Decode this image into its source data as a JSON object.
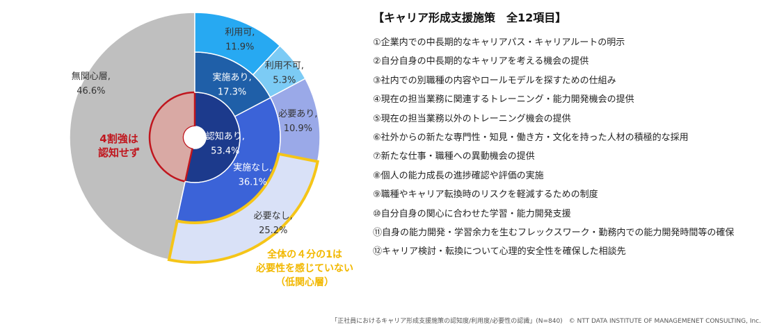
{
  "chart_data": {
    "type": "sunburst",
    "rings": [
      {
        "level": "awareness",
        "segments": [
          {
            "name": "無関心層",
            "pct": "46.6%",
            "value": 46.6,
            "color": "#d9a9a4"
          },
          {
            "name": "認知あり,",
            "pct": "53.4%",
            "value": 53.4,
            "color": "#1c3a8c"
          }
        ]
      },
      {
        "level": "implementation",
        "segments": [
          {
            "name": "実施あり,",
            "pct": "17.3%",
            "value": 17.3,
            "color": "#1f5fa8",
            "parent": "認知あり,"
          },
          {
            "name": "実施なし,",
            "pct": "36.1%",
            "value": 36.1,
            "color": "#3b63d8",
            "parent": "認知あり,"
          }
        ]
      },
      {
        "level": "usage_need",
        "segments": [
          {
            "name": "利用可,",
            "pct": "11.9%",
            "value": 11.9,
            "color": "#27a9f2",
            "parent": "実施あり,"
          },
          {
            "name": "利用不可,",
            "pct": "5.3%",
            "value": 5.3,
            "color": "#7ccbf5",
            "parent": "実施あり,"
          },
          {
            "name": "必要あり,",
            "pct": "10.9%",
            "value": 10.9,
            "color": "#9aa9e8",
            "parent": "実施なし,"
          },
          {
            "name": "必要なし,",
            "pct": "25.2%",
            "value": 25.2,
            "color": "#d9e1f7",
            "parent": "実施なし,"
          }
        ]
      }
    ],
    "outer_gray": {
      "name": "無関心層,",
      "pct": "46.6%",
      "value": 46.6,
      "color": "#bfbfbf"
    },
    "highlight_red": "#c0161e",
    "highlight_yellow": "#f5c518"
  },
  "annotations": {
    "red": "4割強は\n認知せず",
    "yellow": "全体の４分の1は\n必要性を感じていない\n（低関心層）"
  },
  "panel": {
    "title": "【キャリア形成支援施策　全12項目】",
    "items": [
      "①企業内での中長期的なキャリアパス・キャリアルートの明示",
      "②自分自身の中長期的なキャリアを考える機会の提供",
      "③社内での別職種の内容やロールモデルを探すための仕組み",
      "④現在の担当業務に関連するトレーニング・能力開発機会の提供",
      "⑤現在の担当業務以外のトレーニング機会の提供",
      "⑥社外からの新たな専門性・知見・働き方・文化を持った人材の積極的な採用",
      "⑦新たな仕事・職種への異動機会の提供",
      "⑧個人の能力成長の進捗確認や評価の実施",
      "⑨職種やキャリア転換時のリスクを軽減するための制度",
      "⑩自分自身の関心に合わせた学習・能力開発支援",
      "⑪自身の能力開発・学習余力を生むフレックスワーク・勤務内での能力開発時間等の確保",
      "⑫キャリア検討・転換について心理的安全性を確保した相談先"
    ]
  },
  "footer": "「正社員におけるキャリア形成支援施策の認知度/利用度/必要性の認識」(N=840)　© NTT DATA INSTITUTE OF MANAGEMENET CONSULTING, Inc."
}
